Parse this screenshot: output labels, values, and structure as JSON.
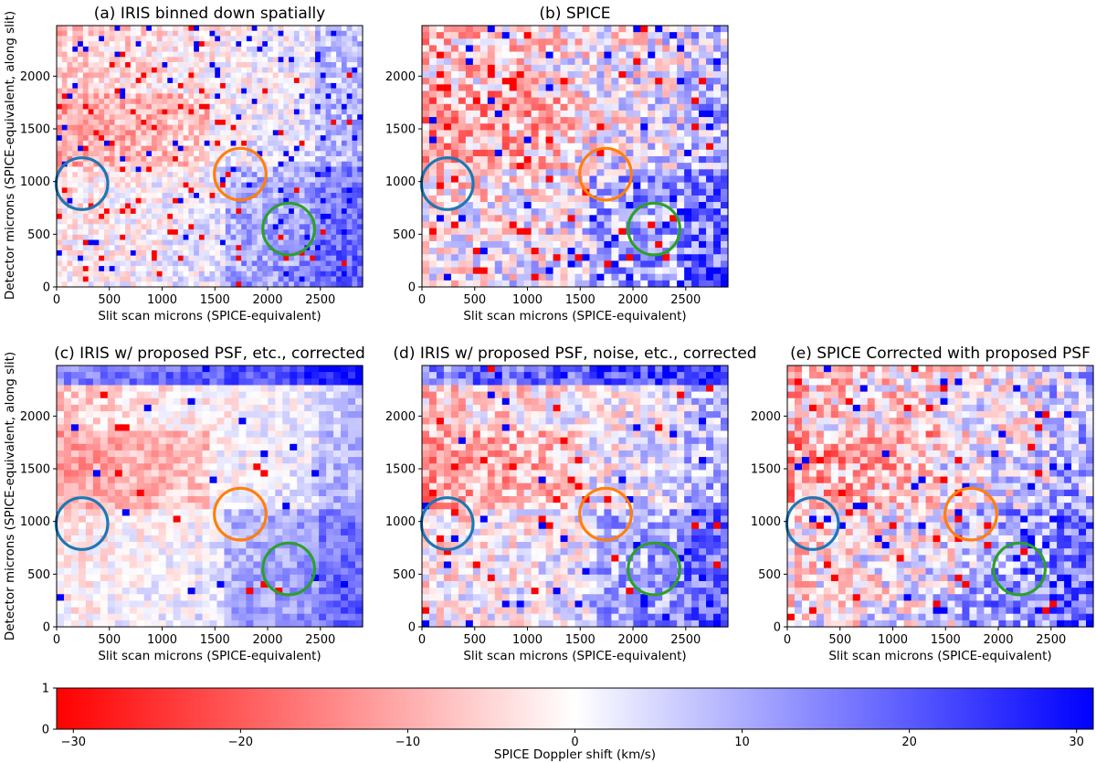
{
  "figure": {
    "colorbar_label": "SPICE Doppler shift (km/s)"
  },
  "chart_data": [
    {
      "type": "heatmap",
      "panel": "a",
      "title": "(a) IRIS binned down spatially",
      "xlabel": "Slit scan microns (SPICE-equivalent)",
      "ylabel": "Detector microns (SPICE-equivalent, along slit)",
      "xlim": [
        0,
        2900
      ],
      "ylim": [
        0,
        2480
      ],
      "xticks": [
        "0",
        "500",
        "1000",
        "1500",
        "2000",
        "2500"
      ],
      "yticks": [
        "0",
        "500",
        "1000",
        "1500",
        "2000"
      ],
      "xtick_values": [
        0,
        500,
        1000,
        1500,
        2000,
        2500
      ],
      "ytick_values": [
        0,
        500,
        1000,
        1500,
        2000
      ],
      "circles": [
        {
          "color": "#1f77b4",
          "x": 240,
          "y": 980,
          "r": 245
        },
        {
          "color": "#ff7f0e",
          "x": 1740,
          "y": 1070,
          "r": 245
        },
        {
          "color": "#2ca02c",
          "x": 2200,
          "y": 550,
          "r": 245
        }
      ]
    },
    {
      "type": "heatmap",
      "panel": "b",
      "title": "(b) SPICE",
      "xlabel": "Slit scan microns (SPICE-equivalent)",
      "ylabel": "",
      "xlim": [
        0,
        2900
      ],
      "ylim": [
        0,
        2480
      ],
      "xticks": [
        "0",
        "500",
        "1000",
        "1500",
        "2000",
        "2500"
      ],
      "yticks": [
        "0",
        "500",
        "1000",
        "1500",
        "2000"
      ],
      "xtick_values": [
        0,
        500,
        1000,
        1500,
        2000,
        2500
      ],
      "ytick_values": [
        0,
        500,
        1000,
        1500,
        2000
      ],
      "circles": [
        {
          "color": "#1f77b4",
          "x": 240,
          "y": 980,
          "r": 245
        },
        {
          "color": "#ff7f0e",
          "x": 1740,
          "y": 1070,
          "r": 245
        },
        {
          "color": "#2ca02c",
          "x": 2200,
          "y": 550,
          "r": 245
        }
      ]
    },
    {
      "type": "heatmap",
      "panel": "c",
      "title": "(c) IRIS w/ proposed PSF, etc., corrected",
      "xlabel": "Slit scan microns (SPICE-equivalent)",
      "ylabel": "Detector microns (SPICE-equivalent, along slit)",
      "xlim": [
        0,
        2900
      ],
      "ylim": [
        0,
        2480
      ],
      "xticks": [
        "0",
        "500",
        "1000",
        "1500",
        "2000",
        "2500"
      ],
      "yticks": [
        "0",
        "500",
        "1000",
        "1500",
        "2000"
      ],
      "xtick_values": [
        0,
        500,
        1000,
        1500,
        2000,
        2500
      ],
      "ytick_values": [
        0,
        500,
        1000,
        1500,
        2000
      ],
      "circles": [
        {
          "color": "#1f77b4",
          "x": 240,
          "y": 980,
          "r": 245
        },
        {
          "color": "#ff7f0e",
          "x": 1740,
          "y": 1070,
          "r": 245
        },
        {
          "color": "#2ca02c",
          "x": 2200,
          "y": 550,
          "r": 245
        }
      ]
    },
    {
      "type": "heatmap",
      "panel": "d",
      "title": "(d) IRIS w/ proposed PSF, noise, etc., corrected",
      "xlabel": "Slit scan microns (SPICE-equivalent)",
      "ylabel": "",
      "xlim": [
        0,
        2900
      ],
      "ylim": [
        0,
        2480
      ],
      "xticks": [
        "0",
        "500",
        "1000",
        "1500",
        "2000",
        "2500"
      ],
      "yticks": [
        "0",
        "500",
        "1000",
        "1500",
        "2000"
      ],
      "xtick_values": [
        0,
        500,
        1000,
        1500,
        2000,
        2500
      ],
      "ytick_values": [
        0,
        500,
        1000,
        1500,
        2000
      ],
      "circles": [
        {
          "color": "#1f77b4",
          "x": 240,
          "y": 980,
          "r": 245
        },
        {
          "color": "#ff7f0e",
          "x": 1740,
          "y": 1070,
          "r": 245
        },
        {
          "color": "#2ca02c",
          "x": 2200,
          "y": 550,
          "r": 245
        }
      ]
    },
    {
      "type": "heatmap",
      "panel": "e",
      "title": "(e) SPICE Corrected with proposed PSF",
      "xlabel": "Slit scan microns (SPICE-equivalent)",
      "ylabel": "",
      "xlim": [
        0,
        2900
      ],
      "ylim": [
        0,
        2480
      ],
      "xticks": [
        "0",
        "500",
        "1000",
        "1500",
        "2000",
        "2500"
      ],
      "yticks": [
        "0",
        "500",
        "1000",
        "1500",
        "2000"
      ],
      "xtick_values": [
        0,
        500,
        1000,
        1500,
        2000,
        2500
      ],
      "ytick_values": [
        0,
        500,
        1000,
        1500,
        2000
      ],
      "circles": [
        {
          "color": "#1f77b4",
          "x": 240,
          "y": 980,
          "r": 245
        },
        {
          "color": "#ff7f0e",
          "x": 1740,
          "y": 1070,
          "r": 245
        },
        {
          "color": "#2ca02c",
          "x": 2200,
          "y": 550,
          "r": 245
        }
      ]
    }
  ],
  "colorbar": {
    "type": "colorbar",
    "label": "SPICE Doppler shift (km/s)",
    "range": [
      -31,
      31
    ],
    "ticks": [
      "−30",
      "−20",
      "−10",
      "0",
      "10",
      "20",
      "30"
    ],
    "tick_values": [
      -30,
      -20,
      -10,
      0,
      10,
      20,
      30
    ],
    "yticks": [
      "0",
      "1"
    ],
    "colors": {
      "low": "#ff0000",
      "mid": "#ffffff",
      "high": "#0000ff"
    }
  }
}
